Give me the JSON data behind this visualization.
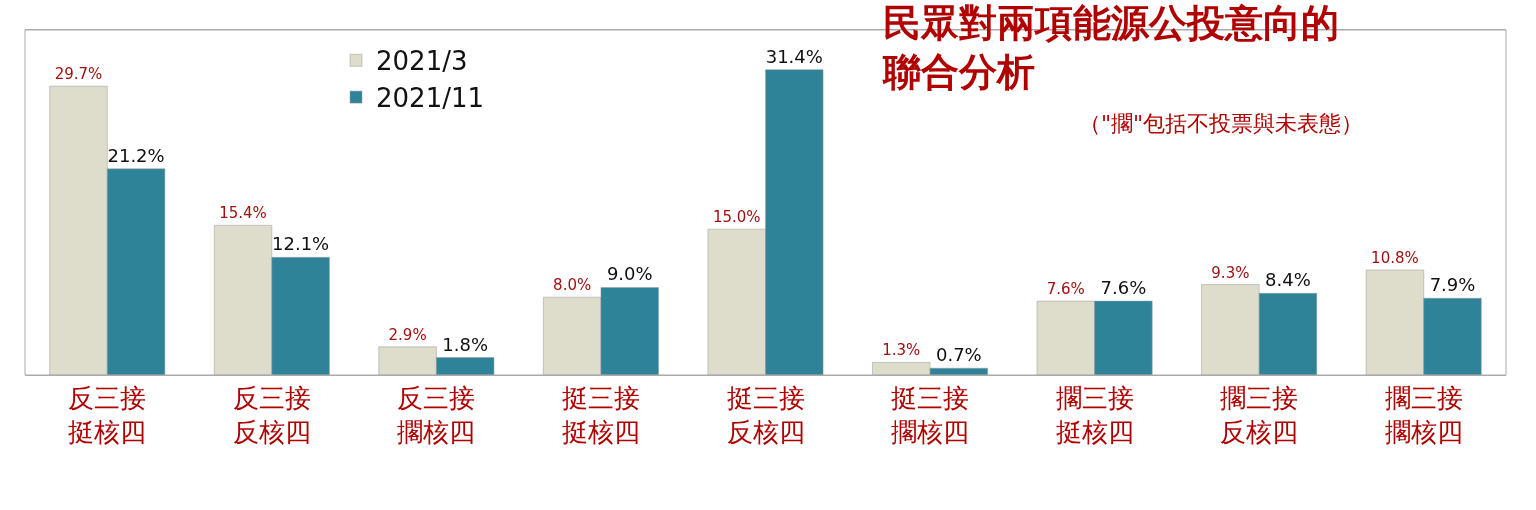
{
  "chart_data": {
    "type": "bar",
    "title": "民眾對兩項能源公投意向的聯合分析",
    "subtitle": "（\"擱\"包括不投票與未表態）",
    "categories": [
      "反三接挺核四",
      "反三接反核四",
      "反三接擱核四",
      "挺三接挺核四",
      "挺三接反核四",
      "挺三接擱核四",
      "擱三接挺核四",
      "擱三接反核四",
      "擱三接擱核四"
    ],
    "series": [
      {
        "name": "2021/3",
        "color": "#dedccb",
        "values": [
          29.7,
          15.4,
          2.9,
          8.0,
          15.0,
          1.3,
          7.6,
          9.3,
          10.8
        ],
        "value_labels": [
          "29.7%",
          "15.4%",
          "2.9%",
          "8.0%",
          "15.0%",
          "1.3%",
          "7.6%",
          "9.3%",
          "10.8%"
        ]
      },
      {
        "name": "2021/11",
        "color": "#2e8399",
        "values": [
          21.2,
          12.1,
          1.8,
          9.0,
          31.4,
          0.7,
          7.6,
          8.4,
          7.9
        ],
        "value_labels": [
          "21.2%",
          "12.1%",
          "1.8%",
          "9.0%",
          "31.4%",
          "0.7%",
          "7.6%",
          "8.4%",
          "7.9%"
        ]
      }
    ],
    "data_labels": true,
    "legend": "top left"
  }
}
